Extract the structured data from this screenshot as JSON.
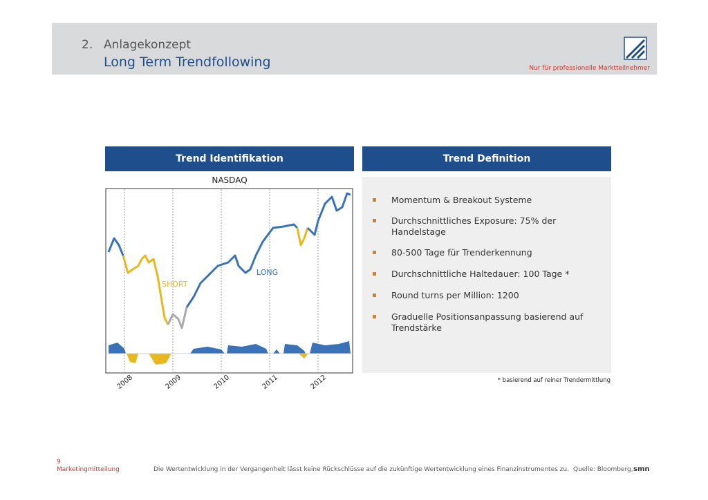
{
  "header": {
    "number": "2.",
    "title": "Anlagekonzept",
    "subtitle": "Long Term Trendfollowing",
    "note": "Nur für professionelle Marktteilnehmer"
  },
  "left_panel": {
    "title": "Trend Identifikation",
    "chart_title": "NASDAQ",
    "short_label": "SHORT",
    "long_label": "LONG",
    "years": [
      "2008",
      "2009",
      "2010",
      "2011",
      "2012"
    ]
  },
  "right_panel": {
    "title": "Trend Definition",
    "bullets": [
      "Momentum & Breakout Systeme",
      "Durchschnittliches Exposure: 75% der Handelstage",
      "80-500 Tage für Trenderkennung",
      "Durchschnittliche Haltedauer: 100 Tage *",
      "Round turns per Million: 1200",
      "Graduelle Positionsanpassung basierend auf Trendstärke"
    ],
    "footnote": "* basierend auf reiner Trendermittlung"
  },
  "footer": {
    "page": "9",
    "label": "Marketingmitteilung",
    "disclaimer": "Die Wertentwicklung in der Vergangenheit lässt keine Rückschlüsse auf die zukünftige Wertentwicklung eines Finanzinstrumentes zu.",
    "source": "Quelle: Bloomberg,",
    "brand": "smn"
  }
}
